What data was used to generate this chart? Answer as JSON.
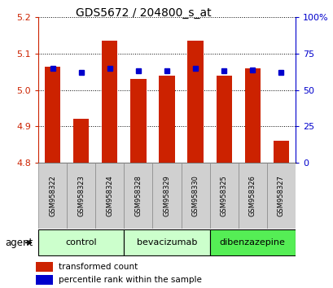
{
  "title": "GDS5672 / 204800_s_at",
  "samples": [
    "GSM958322",
    "GSM958323",
    "GSM958324",
    "GSM958328",
    "GSM958329",
    "GSM958330",
    "GSM958325",
    "GSM958326",
    "GSM958327"
  ],
  "transformed_count": [
    5.065,
    4.92,
    5.135,
    5.03,
    5.04,
    5.135,
    5.04,
    5.06,
    4.86
  ],
  "percentile_rank": [
    65,
    62,
    65,
    63,
    63,
    65,
    63,
    64,
    62
  ],
  "groups": [
    {
      "label": "control",
      "indices": [
        0,
        1,
        2
      ],
      "color": "#ccffcc"
    },
    {
      "label": "bevacizumab",
      "indices": [
        3,
        4,
        5
      ],
      "color": "#ccffcc"
    },
    {
      "label": "dibenzazepine",
      "indices": [
        6,
        7,
        8
      ],
      "color": "#55ee55"
    }
  ],
  "ylim_left": [
    4.8,
    5.2
  ],
  "ylim_right": [
    0,
    100
  ],
  "bar_color": "#cc2200",
  "dot_color": "#0000cc",
  "bar_bottom": 4.8,
  "background_color": "#ffffff",
  "plot_bg": "#ffffff",
  "title_color": "#000000",
  "left_tick_color": "#cc2200",
  "right_tick_color": "#0000cc",
  "legend_red_label": "transformed count",
  "legend_blue_label": "percentile rank within the sample",
  "agent_label": "agent",
  "label_bg": "#d0d0d0",
  "yticks_left": [
    4.8,
    4.9,
    5.0,
    5.1,
    5.2
  ],
  "yticks_right": [
    0,
    25,
    50,
    75,
    100
  ]
}
